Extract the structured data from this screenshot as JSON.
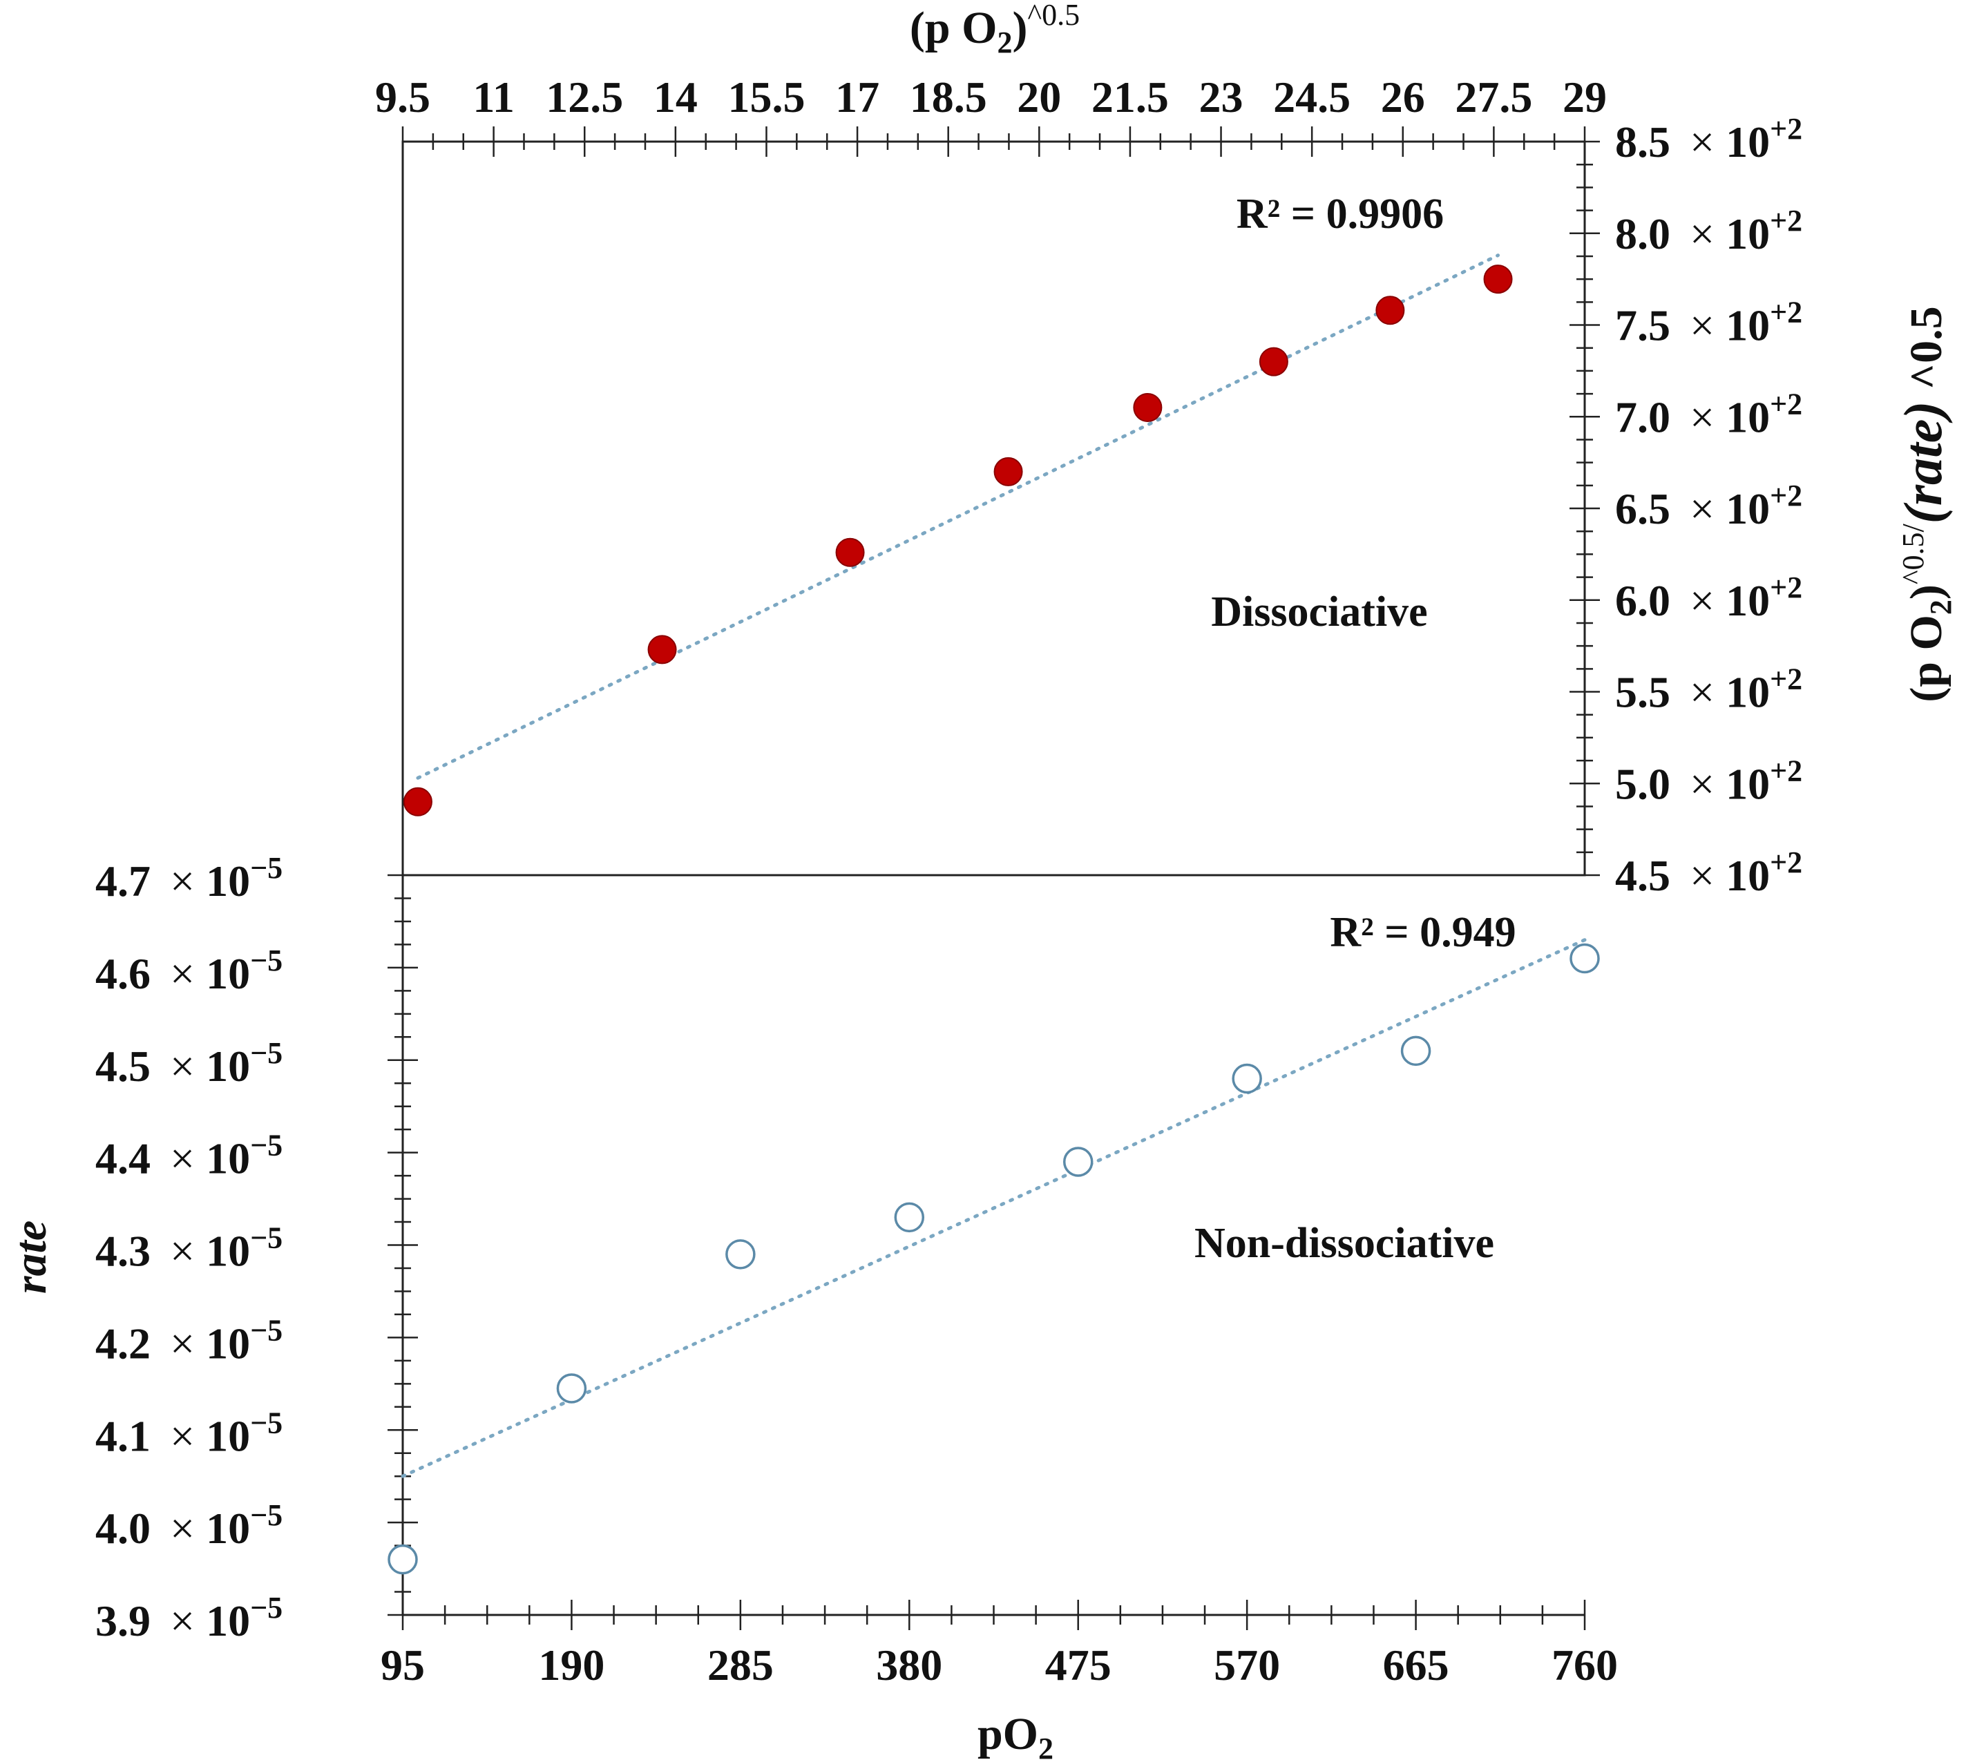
{
  "chart_data": [
    {
      "id": "top",
      "type": "scatter",
      "title": "",
      "xlabel": "(p O₂)^0.5",
      "xlabel_main": "(p O",
      "xlabel_sub": "2",
      "xlabel_sup": ")^0.5",
      "ylabel": "(p O₂)^0.5/(rate) ^0.5",
      "ylabel_parts": {
        "a": "(p O",
        "sub": "2",
        "b": ")",
        "sup": "^0.5/",
        "rate": "(rate)",
        "c": " ^0.5"
      },
      "xlim": [
        9.5,
        29
      ],
      "ylim": [
        450,
        850
      ],
      "x_ticks": [
        "9.5",
        "11",
        "12.5",
        "14",
        "15.5",
        "17",
        "18.5",
        "20",
        "21.5",
        "23",
        "24.5",
        "26",
        "27.5",
        "29"
      ],
      "x_tick_values": [
        9.5,
        11,
        12.5,
        14,
        15.5,
        17,
        18.5,
        20,
        21.5,
        23,
        24.5,
        26,
        27.5,
        29
      ],
      "y_ticks": [
        {
          "value": 850,
          "mant": "8.5",
          "pow": "+2"
        },
        {
          "value": 800,
          "mant": "8.0",
          "pow": "+2"
        },
        {
          "value": 750,
          "mant": "7.5",
          "pow": "+2"
        },
        {
          "value": 700,
          "mant": "7.0",
          "pow": "+2"
        },
        {
          "value": 650,
          "mant": "6.5",
          "pow": "+2"
        },
        {
          "value": 600,
          "mant": "6.0",
          "pow": "+2"
        },
        {
          "value": 550,
          "mant": "5.5",
          "pow": "+2"
        },
        {
          "value": 500,
          "mant": "5.0",
          "pow": "+2"
        },
        {
          "value": 450,
          "mant": "4.5",
          "pow": "+2"
        }
      ],
      "series": [
        {
          "name": "Dissociative",
          "marker": "filled-circle",
          "color": "#c00000",
          "x": [
            9.75,
            13.78,
            16.88,
            19.49,
            21.79,
            23.87,
            25.79,
            27.57
          ],
          "y": [
            490,
            573,
            626,
            670,
            705,
            730,
            758,
            775
          ]
        }
      ],
      "trendline": {
        "x": [
          9.75,
          27.57
        ],
        "y": [
          503,
          788
        ],
        "color": "#7ba7c2",
        "style": "dotted"
      },
      "annotations": {
        "r2": "R² = 0.9906",
        "label": "Dissociative"
      },
      "times_sign": "×",
      "base": "10"
    },
    {
      "id": "bottom",
      "type": "scatter",
      "title": "",
      "xlabel": "pO₂",
      "xlabel_main": "pO",
      "xlabel_sub": "2",
      "ylabel": "rate",
      "xlim": [
        95,
        760
      ],
      "ylim": [
        3.9e-05,
        4.7e-05
      ],
      "x_ticks": [
        "95",
        "190",
        "285",
        "380",
        "475",
        "570",
        "665",
        "760"
      ],
      "x_tick_values": [
        95,
        190,
        285,
        380,
        475,
        570,
        665,
        760
      ],
      "y_ticks": [
        {
          "value": 4.7e-05,
          "mant": "4.7",
          "pow": "−5"
        },
        {
          "value": 4.6e-05,
          "mant": "4.6",
          "pow": "−5"
        },
        {
          "value": 4.5e-05,
          "mant": "4.5",
          "pow": "−5"
        },
        {
          "value": 4.4e-05,
          "mant": "4.4",
          "pow": "−5"
        },
        {
          "value": 4.3e-05,
          "mant": "4.3",
          "pow": "−5"
        },
        {
          "value": 4.2e-05,
          "mant": "4.2",
          "pow": "−5"
        },
        {
          "value": 4.1e-05,
          "mant": "4.1",
          "pow": "−5"
        },
        {
          "value": 4e-05,
          "mant": "4.0",
          "pow": "−5"
        },
        {
          "value": 3.9e-05,
          "mant": "3.9",
          "pow": "−5"
        }
      ],
      "series": [
        {
          "name": "Non-dissociative",
          "marker": "open-circle",
          "color": "#5b8aa8",
          "x": [
            95,
            190,
            285,
            380,
            475,
            570,
            665,
            760
          ],
          "y": [
            3.96e-05,
            4.145e-05,
            4.29e-05,
            4.33e-05,
            4.39e-05,
            4.48e-05,
            4.51e-05,
            4.61e-05
          ]
        }
      ],
      "trendline": {
        "x": [
          95,
          760
        ],
        "y": [
          4.05e-05,
          4.63e-05
        ],
        "color": "#7ba7c2",
        "style": "dotted"
      },
      "annotations": {
        "r2": "R² = 0.949",
        "label": "Non-dissociative"
      },
      "times_sign": "×",
      "base": "10"
    }
  ]
}
